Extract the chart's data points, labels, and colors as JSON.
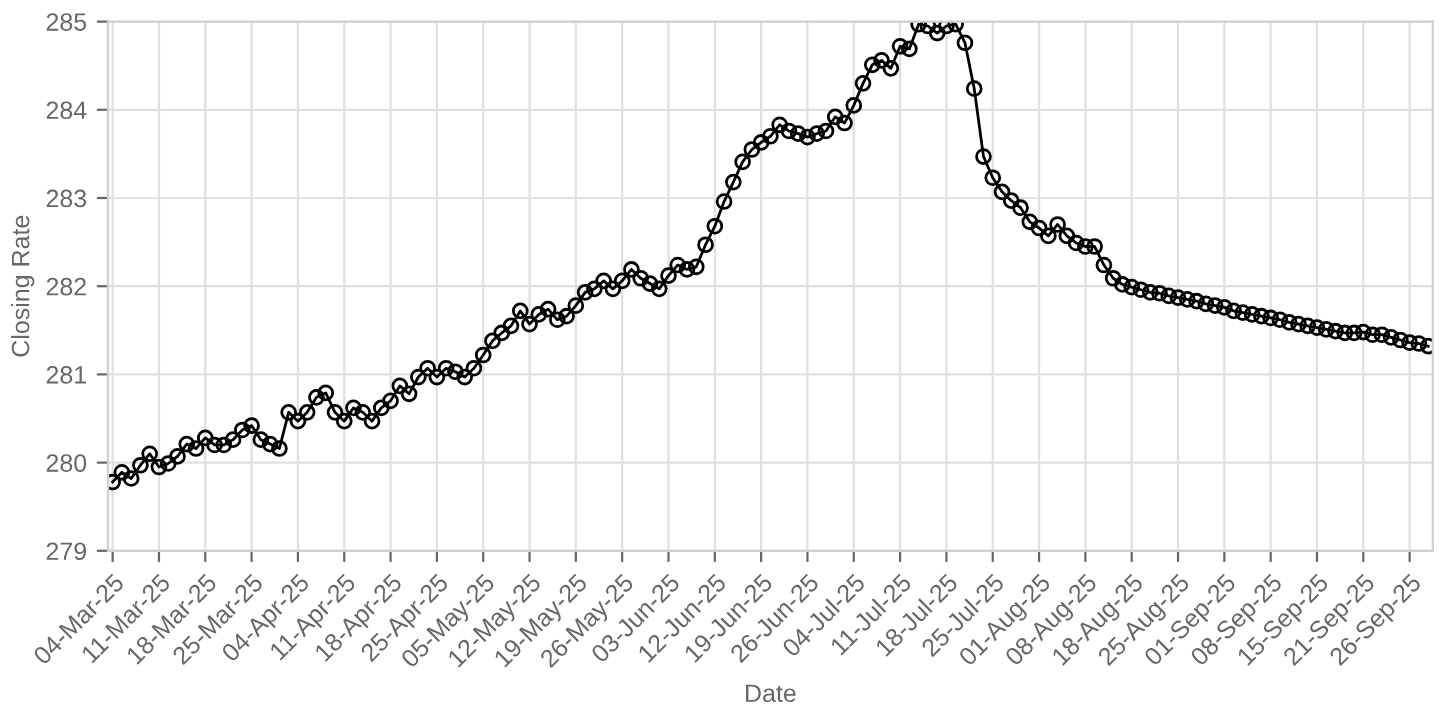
{
  "chart_data": {
    "type": "line",
    "xlabel": "Date",
    "ylabel": "Closing Rate",
    "categories": [
      "04-Mar-25",
      null,
      null,
      null,
      null,
      "11-Mar-25",
      null,
      null,
      null,
      null,
      "18-Mar-25",
      null,
      null,
      null,
      null,
      "25-Mar-25",
      null,
      null,
      null,
      null,
      "04-Apr-25",
      null,
      null,
      null,
      null,
      "11-Apr-25",
      null,
      null,
      null,
      null,
      "18-Apr-25",
      null,
      null,
      null,
      null,
      "25-Apr-25",
      null,
      null,
      null,
      null,
      "05-May-25",
      null,
      null,
      null,
      null,
      "12-May-25",
      null,
      null,
      null,
      null,
      "19-May-25",
      null,
      null,
      null,
      null,
      "26-May-25",
      null,
      null,
      null,
      null,
      "03-Jun-25",
      null,
      null,
      null,
      null,
      "12-Jun-25",
      null,
      null,
      null,
      null,
      "19-Jun-25",
      null,
      null,
      null,
      null,
      "26-Jun-25",
      null,
      null,
      null,
      null,
      "04-Jul-25",
      null,
      null,
      null,
      null,
      "11-Jul-25",
      null,
      null,
      null,
      null,
      "18-Jul-25",
      null,
      null,
      null,
      null,
      "25-Jul-25",
      null,
      null,
      null,
      null,
      "01-Aug-25",
      null,
      null,
      null,
      null,
      "08-Aug-25",
      null,
      null,
      null,
      null,
      "18-Aug-25",
      null,
      null,
      null,
      null,
      "25-Aug-25",
      null,
      null,
      null,
      null,
      "01-Sep-25",
      null,
      null,
      null,
      null,
      "08-Sep-25",
      null,
      null,
      null,
      null,
      "15-Sep-25",
      null,
      null,
      null,
      null,
      "21-Sep-25",
      null,
      null,
      null,
      null,
      "26-Sep-25",
      null,
      null
    ],
    "series": [
      {
        "color": "#000000",
        "values": [
          279.78,
          279.89,
          279.82,
          279.97,
          280.1,
          279.95,
          279.99,
          280.07,
          280.21,
          280.16,
          280.28,
          280.2,
          280.2,
          280.26,
          280.37,
          280.42,
          280.26,
          280.21,
          280.16,
          280.57,
          280.47,
          280.57,
          280.74,
          280.79,
          280.57,
          280.47,
          280.62,
          280.57,
          280.47,
          280.62,
          280.7,
          280.87,
          280.78,
          280.97,
          281.07,
          280.97,
          281.07,
          281.03,
          280.97,
          281.07,
          281.22,
          281.38,
          281.47,
          281.55,
          281.72,
          281.57,
          281.68,
          281.74,
          281.62,
          281.66,
          281.78,
          281.93,
          281.97,
          282.06,
          281.97,
          282.06,
          282.19,
          282.09,
          282.03,
          281.97,
          282.12,
          282.24,
          282.19,
          282.22,
          282.47,
          282.68,
          282.96,
          283.18,
          283.41,
          283.55,
          283.63,
          283.7,
          283.83,
          283.76,
          283.73,
          283.69,
          283.73,
          283.76,
          283.92,
          283.85,
          284.05,
          284.3,
          284.51,
          284.56,
          284.47,
          284.72,
          284.69,
          284.97,
          284.95,
          284.87,
          284.95,
          284.97,
          284.76,
          284.24,
          283.47,
          283.23,
          283.07,
          282.97,
          282.89,
          282.73,
          282.66,
          282.57,
          282.7,
          282.57,
          282.49,
          282.45,
          282.45,
          282.24,
          282.09,
          282.02,
          281.99,
          281.96,
          281.93,
          281.92,
          281.89,
          281.87,
          281.85,
          281.83,
          281.8,
          281.78,
          281.76,
          281.72,
          281.7,
          281.68,
          281.66,
          281.64,
          281.62,
          281.59,
          281.57,
          281.55,
          281.53,
          281.51,
          281.49,
          281.47,
          281.47,
          281.48,
          281.45,
          281.45,
          281.42,
          281.39,
          281.36,
          281.35,
          281.32
        ]
      }
    ],
    "ylim": [
      279,
      285
    ],
    "yticks": [
      279,
      280,
      281,
      282,
      283,
      284,
      285
    ],
    "grid": true,
    "marker": "circle",
    "line_style": "solid"
  }
}
